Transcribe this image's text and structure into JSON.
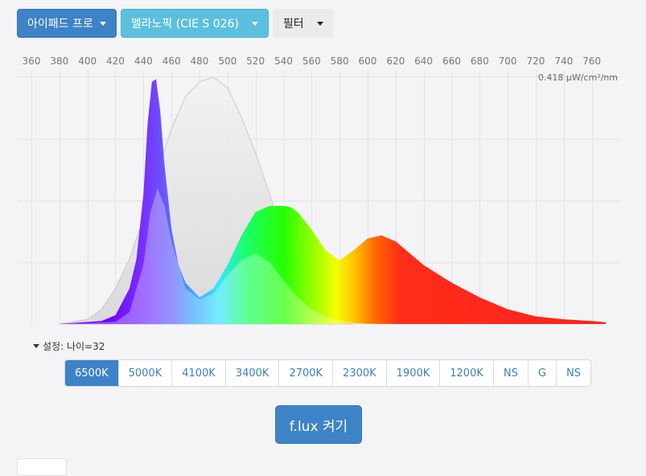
{
  "toolbar": {
    "device_label": "아이패드 프로",
    "sensitivity_label": "멜라노픽 (CIE S 026)",
    "filter_label": "필터"
  },
  "settings": {
    "label": "설정: 나이=32"
  },
  "temperature_buttons": [
    {
      "label": "6500K",
      "active": true
    },
    {
      "label": "5000K",
      "active": false
    },
    {
      "label": "4100K",
      "active": false
    },
    {
      "label": "3400K",
      "active": false
    },
    {
      "label": "2700K",
      "active": false
    },
    {
      "label": "2300K",
      "active": false
    },
    {
      "label": "1900K",
      "active": false
    },
    {
      "label": "1200K",
      "active": false
    },
    {
      "label": "NS",
      "active": false
    },
    {
      "label": "G",
      "active": false
    },
    {
      "label": "NS",
      "active": false
    }
  ],
  "flux_button": {
    "label": "f.lux 켜기"
  },
  "chart_data": {
    "type": "area",
    "title": "",
    "xlabel": "",
    "ylabel": "",
    "x_ticks": [
      360,
      380,
      400,
      420,
      440,
      460,
      480,
      500,
      520,
      540,
      560,
      580,
      600,
      620,
      640,
      660,
      680,
      700,
      720,
      740,
      760
    ],
    "xlim": [
      355,
      775
    ],
    "ylim": [
      0,
      0.418
    ],
    "max_label": "0.418 μW/cm²/nm",
    "grid": true,
    "series": [
      {
        "role": "melanopic-sensitivity",
        "x": [
          380,
          400,
          410,
          420,
          430,
          440,
          450,
          460,
          470,
          480,
          490,
          500,
          510,
          520,
          530,
          540,
          550,
          560,
          570,
          580,
          590
        ],
        "values": [
          0.0,
          0.008,
          0.025,
          0.06,
          0.11,
          0.18,
          0.26,
          0.33,
          0.385,
          0.41,
          0.418,
          0.4,
          0.35,
          0.29,
          0.22,
          0.15,
          0.09,
          0.05,
          0.025,
          0.01,
          0.0
        ]
      },
      {
        "role": "display-spectrum",
        "x": [
          380,
          410,
          420,
          430,
          435,
          440,
          443,
          446,
          449,
          452,
          455,
          460,
          465,
          470,
          480,
          490,
          500,
          510,
          520,
          530,
          540,
          545,
          550,
          560,
          570,
          580,
          590,
          600,
          610,
          620,
          630,
          640,
          650,
          660,
          680,
          700,
          720,
          740,
          760,
          770
        ],
        "values": [
          0.0,
          0.005,
          0.015,
          0.06,
          0.11,
          0.22,
          0.34,
          0.41,
          0.415,
          0.36,
          0.27,
          0.16,
          0.1,
          0.07,
          0.045,
          0.06,
          0.1,
          0.15,
          0.19,
          0.2,
          0.2,
          0.198,
          0.19,
          0.16,
          0.125,
          0.108,
          0.125,
          0.145,
          0.15,
          0.14,
          0.12,
          0.1,
          0.085,
          0.07,
          0.045,
          0.025,
          0.013,
          0.008,
          0.005,
          0.003
        ]
      },
      {
        "role": "melanopic-weighted",
        "x": [
          380,
          420,
          430,
          440,
          445,
          450,
          455,
          460,
          470,
          480,
          490,
          500,
          510,
          520,
          530,
          540,
          550,
          560,
          570,
          580,
          590,
          600,
          610,
          620
        ],
        "values": [
          0.0,
          0.004,
          0.02,
          0.1,
          0.19,
          0.23,
          0.2,
          0.14,
          0.06,
          0.042,
          0.052,
          0.082,
          0.108,
          0.12,
          0.105,
          0.075,
          0.045,
          0.025,
          0.012,
          0.006,
          0.003,
          0.001,
          0.0005,
          0.0
        ]
      }
    ]
  }
}
